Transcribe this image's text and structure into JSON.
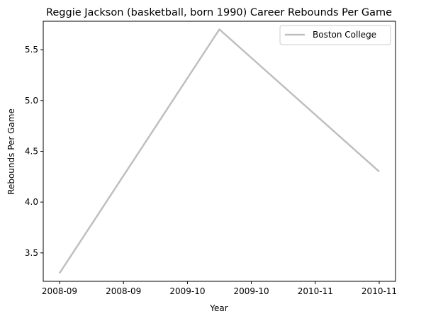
{
  "chart_data": {
    "type": "line",
    "title": "Reggie Jackson (basketball, born 1990) Career Rebounds Per Game",
    "xlabel": "Year",
    "ylabel": "Rebounds Per Game",
    "x": [
      "2008-09",
      "2009-10",
      "2010-11"
    ],
    "x_tick_labels": [
      "2008-09",
      "2008-09",
      "2009-10",
      "2009-10",
      "2010-11",
      "2010-11"
    ],
    "y_ticks": [
      3.5,
      4.0,
      4.5,
      5.0,
      5.5
    ],
    "y_tick_labels": [
      "3.5",
      "4.0",
      "4.5",
      "5.0",
      "5.5"
    ],
    "ylim": [
      3.22,
      5.78
    ],
    "grid": false,
    "legend_position": "top-right",
    "series": [
      {
        "name": "Boston College",
        "color": "#bfbfbf",
        "values": [
          3.3,
          5.7,
          4.3
        ]
      }
    ]
  }
}
